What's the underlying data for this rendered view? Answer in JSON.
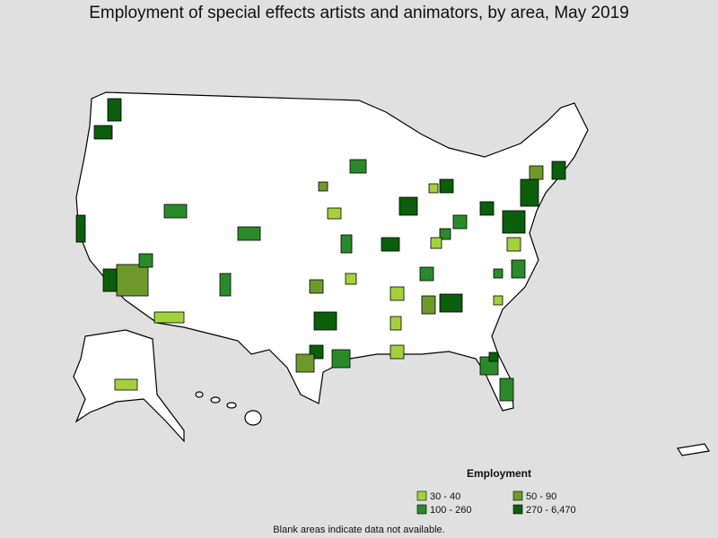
{
  "header": {
    "title": "Employment of special effects artists and animators, by area, May 2019"
  },
  "legend": {
    "title": "Employment",
    "items": [
      {
        "label": "30 - 40",
        "color": "#a3d13c"
      },
      {
        "label": "50 - 90",
        "color": "#6e9a2c"
      },
      {
        "label": "100 - 260",
        "color": "#2a8a2a"
      },
      {
        "label": "270 - 6,470",
        "color": "#0b5e0b"
      }
    ]
  },
  "footnote": "Blank areas indicate data not available."
}
